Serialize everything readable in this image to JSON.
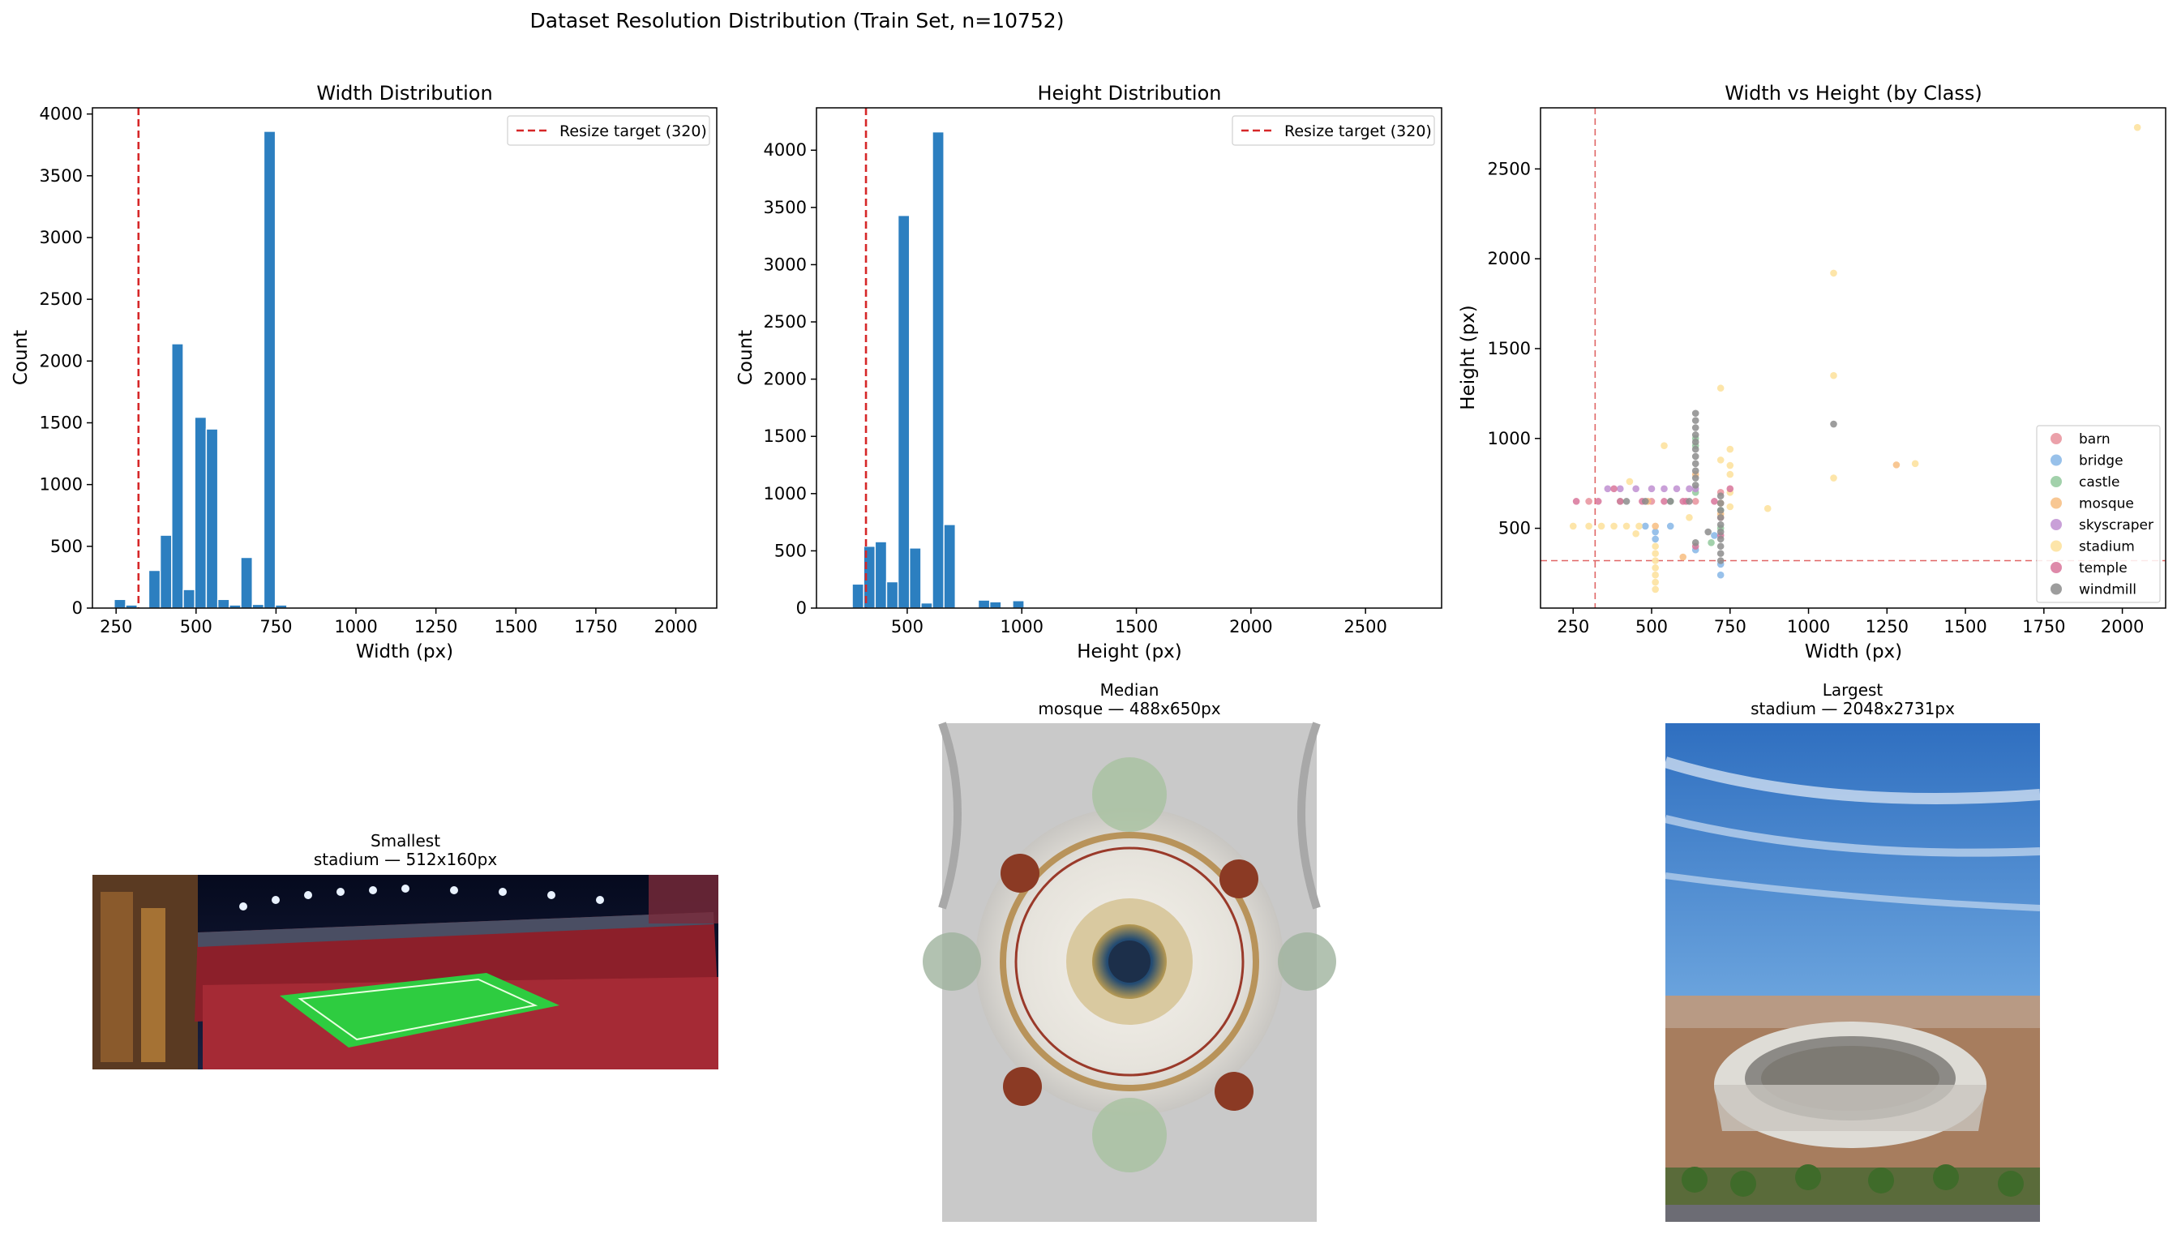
{
  "suptitle": "Dataset Resolution Distribution (Train Set, n=10752)",
  "chart_data": [
    {
      "type": "bar",
      "title": "Width Distribution",
      "xlabel": "Width (px)",
      "ylabel": "Count",
      "xlim": [
        176,
        2128
      ],
      "ylim": [
        0,
        4050
      ],
      "xticks": [
        250,
        500,
        750,
        1000,
        1250,
        1500,
        1750,
        2000
      ],
      "yticks": [
        0,
        500,
        1000,
        1500,
        2000,
        2500,
        3000,
        3500,
        4000
      ],
      "bin_width": 36,
      "bins": [
        {
          "x": 262,
          "count": 70
        },
        {
          "x": 298,
          "count": 25
        },
        {
          "x": 370,
          "count": 305
        },
        {
          "x": 406,
          "count": 590
        },
        {
          "x": 442,
          "count": 2140
        },
        {
          "x": 478,
          "count": 150
        },
        {
          "x": 514,
          "count": 1545
        },
        {
          "x": 550,
          "count": 1450
        },
        {
          "x": 586,
          "count": 70
        },
        {
          "x": 622,
          "count": 25
        },
        {
          "x": 658,
          "count": 410
        },
        {
          "x": 694,
          "count": 30
        },
        {
          "x": 730,
          "count": 3860
        },
        {
          "x": 766,
          "count": 25
        }
      ],
      "bar_color": "#2c7fc0",
      "reference_line": {
        "value": 320,
        "label": "Resize target (320)",
        "color": "#d62728"
      },
      "legend": "top-right",
      "grid": false
    },
    {
      "type": "bar",
      "title": "Height Distribution",
      "xlabel": "Height (px)",
      "ylabel": "Count",
      "xlim": [
        104,
        2832
      ],
      "ylim": [
        0,
        4370
      ],
      "xticks": [
        500,
        1000,
        1500,
        2000,
        2500
      ],
      "yticks": [
        0,
        500,
        1000,
        1500,
        2000,
        2500,
        3000,
        3500,
        4000
      ],
      "bin_width": 50,
      "bins": [
        {
          "x": 285,
          "count": 210
        },
        {
          "x": 335,
          "count": 540
        },
        {
          "x": 385,
          "count": 580
        },
        {
          "x": 435,
          "count": 230
        },
        {
          "x": 485,
          "count": 3430
        },
        {
          "x": 535,
          "count": 525
        },
        {
          "x": 585,
          "count": 45
        },
        {
          "x": 635,
          "count": 4160
        },
        {
          "x": 685,
          "count": 730
        },
        {
          "x": 835,
          "count": 70
        },
        {
          "x": 885,
          "count": 55
        },
        {
          "x": 985,
          "count": 65
        }
      ],
      "bar_color": "#2c7fc0",
      "reference_line": {
        "value": 320,
        "label": "Resize target (320)",
        "color": "#d62728"
      },
      "legend": "top-right",
      "grid": false
    },
    {
      "type": "scatter",
      "title": "Width vs Height (by Class)",
      "xlabel": "Width (px)",
      "ylabel": "Height (px)",
      "xlim": [
        146,
        2138
      ],
      "ylim": [
        56,
        2840
      ],
      "xticks": [
        250,
        500,
        750,
        1000,
        1250,
        1500,
        1750,
        2000
      ],
      "yticks": [
        500,
        1000,
        1500,
        2000,
        2500
      ],
      "reference_lines": {
        "x": 320,
        "y": 320,
        "color": "#e06666"
      },
      "legend": "lower-right",
      "grid": false,
      "series": [
        {
          "name": "barn",
          "color": "#e8919b",
          "points": [
            [
              300,
              650
            ],
            [
              500,
              650
            ],
            [
              640,
              650
            ],
            [
              720,
              700
            ],
            [
              720,
              560
            ]
          ]
        },
        {
          "name": "bridge",
          "color": "#86b6e6",
          "points": [
            [
              512,
              480
            ],
            [
              512,
              440
            ],
            [
              480,
              512
            ],
            [
              720,
              240
            ],
            [
              700,
              460
            ],
            [
              640,
              380
            ],
            [
              560,
              512
            ],
            [
              720,
              300
            ]
          ]
        },
        {
          "name": "castle",
          "color": "#92c99c",
          "points": [
            [
              400,
              650
            ],
            [
              560,
              650
            ],
            [
              640,
              1000
            ],
            [
              640,
              960
            ],
            [
              720,
              600
            ],
            [
              720,
              500
            ],
            [
              640,
              700
            ],
            [
              690,
              420
            ]
          ]
        },
        {
          "name": "mosque",
          "color": "#f7bd80",
          "points": [
            [
              640,
              800
            ],
            [
              720,
              640
            ],
            [
              488,
              650
            ],
            [
              1280,
              853
            ],
            [
              512,
              512
            ],
            [
              720,
              580
            ],
            [
              600,
              340
            ]
          ]
        },
        {
          "name": "skyscraper",
          "color": "#c08fd1",
          "points": [
            [
              400,
              720
            ],
            [
              500,
              720
            ],
            [
              580,
              720
            ],
            [
              640,
              720
            ],
            [
              360,
              720
            ],
            [
              450,
              720
            ],
            [
              540,
              720
            ],
            [
              620,
              720
            ]
          ]
        },
        {
          "name": "stadium",
          "color": "#fde19a",
          "points": [
            [
              250,
              512
            ],
            [
              300,
              512
            ],
            [
              340,
              512
            ],
            [
              380,
              512
            ],
            [
              420,
              512
            ],
            [
              460,
              512
            ],
            [
              512,
              160
            ],
            [
              512,
              200
            ],
            [
              512,
              240
            ],
            [
              512,
              280
            ],
            [
              512,
              320
            ],
            [
              512,
              360
            ],
            [
              512,
              400
            ],
            [
              1080,
              1920
            ],
            [
              1080,
              1350
            ],
            [
              1080,
              780
            ],
            [
              1340,
              860
            ],
            [
              2048,
              2731
            ],
            [
              720,
              1280
            ],
            [
              750,
              940
            ],
            [
              750,
              850
            ],
            [
              750,
              800
            ],
            [
              750,
              700
            ],
            [
              750,
              620
            ],
            [
              870,
              610
            ],
            [
              540,
              960
            ],
            [
              430,
              760
            ],
            [
              620,
              560
            ],
            [
              720,
              880
            ],
            [
              450,
              470
            ]
          ]
        },
        {
          "name": "temple",
          "color": "#d8749a",
          "points": [
            [
              260,
              650
            ],
            [
              330,
              650
            ],
            [
              400,
              650
            ],
            [
              470,
              650
            ],
            [
              540,
              650
            ],
            [
              610,
              650
            ],
            [
              700,
              650
            ],
            [
              750,
              720
            ],
            [
              640,
              400
            ],
            [
              720,
              460
            ],
            [
              600,
              650
            ],
            [
              380,
              720
            ]
          ]
        },
        {
          "name": "windmill",
          "color": "#8c8c8c",
          "points": [
            [
              640,
              1140
            ],
            [
              640,
              1100
            ],
            [
              640,
              1060
            ],
            [
              640,
              1020
            ],
            [
              640,
              980
            ],
            [
              640,
              940
            ],
            [
              640,
              900
            ],
            [
              640,
              860
            ],
            [
              640,
              820
            ],
            [
              640,
              780
            ],
            [
              640,
              740
            ],
            [
              1080,
              1080
            ],
            [
              720,
              680
            ],
            [
              720,
              640
            ],
            [
              720,
              600
            ],
            [
              720,
              560
            ],
            [
              720,
              520
            ],
            [
              720,
              480
            ],
            [
              720,
              440
            ],
            [
              720,
              400
            ],
            [
              720,
              360
            ],
            [
              720,
              320
            ],
            [
              420,
              650
            ],
            [
              480,
              650
            ],
            [
              560,
              650
            ],
            [
              620,
              650
            ],
            [
              680,
              480
            ],
            [
              640,
              420
            ]
          ]
        }
      ]
    }
  ],
  "samples": [
    {
      "heading": "Smallest",
      "caption": "stadium — 512x160px"
    },
    {
      "heading": "Median",
      "caption": "mosque — 488x650px"
    },
    {
      "heading": "Largest",
      "caption": "stadium — 2048x2731px"
    }
  ]
}
